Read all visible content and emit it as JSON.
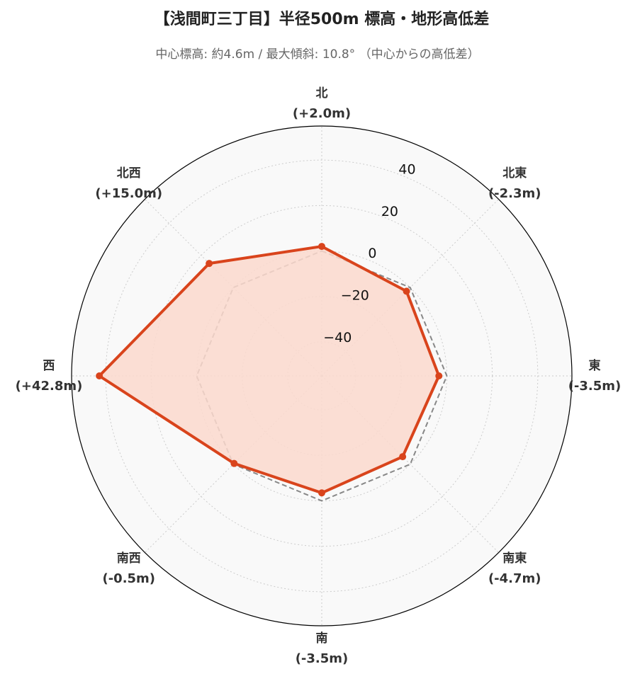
{
  "chart_data": {
    "type": "radar",
    "title": "【浅間町三丁目】半径500m 標高・地形高低差",
    "subtitle": "中心標高: 約4.6m / 最大傾斜: 10.8° （中心からの高低差）",
    "categories": [
      "北",
      "北東",
      "東",
      "南東",
      "南",
      "南西",
      "西",
      "北西"
    ],
    "values": [
      2.0,
      -2.3,
      -3.5,
      -4.7,
      -3.5,
      -0.5,
      42.8,
      15.0
    ],
    "value_labels": [
      "(+2.0m)",
      "(-2.3m)",
      "(-3.5m)",
      "(-4.7m)",
      "(-3.5m)",
      "(-0.5m)",
      "(+42.8m)",
      "(+15.0m)"
    ],
    "color": "#d9441c",
    "fill_color": "#fcd9ce",
    "baseline": {
      "values": [
        0,
        0,
        0,
        0,
        0,
        0,
        0,
        0
      ],
      "color": "#888888"
    },
    "ylim": [
      -55,
      55
    ],
    "yticks": [
      {
        "value": -40,
        "label": "−40"
      },
      {
        "value": -20,
        "label": "−20"
      },
      0,
      20,
      40
    ],
    "grid": true
  }
}
